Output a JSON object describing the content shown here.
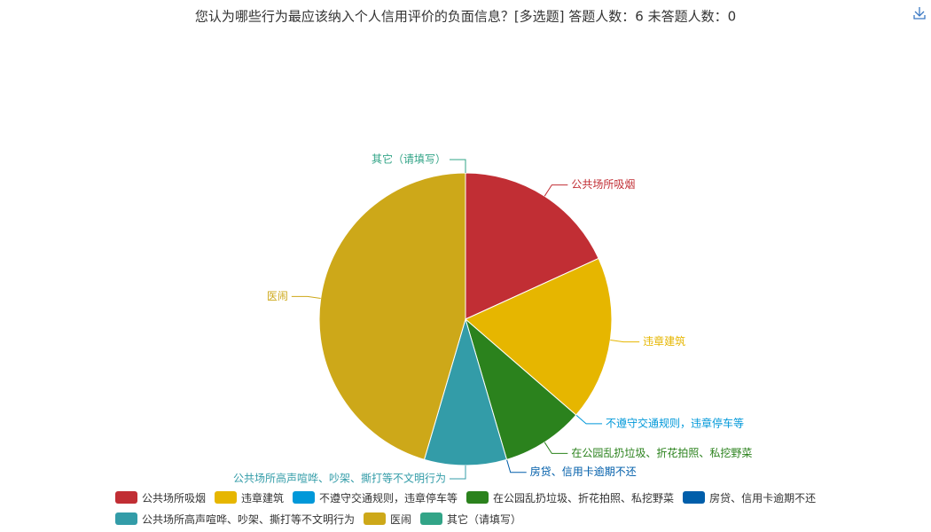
{
  "chart_data": {
    "type": "pie",
    "title": "您认为哪些行为最应该纳入个人信用评价的负面信息？[多选题]  答题人数：6  未答题人数：0",
    "categories": [
      "公共场所吸烟",
      "违章建筑",
      "不遵守交通规则，违章停车等",
      "在公园乱扔垃圾、折花拍照、私挖野菜",
      "房贷、信用卡逾期不还",
      "公共场所高声喧哗、吵架、撕打等不文明行为",
      "医闹",
      "其它（请填写）"
    ],
    "values": [
      2,
      2,
      0,
      1,
      0,
      1,
      5,
      0
    ],
    "colors": [
      "#c12e34",
      "#e6b600",
      "#0098d9",
      "#2b821d",
      "#005eaa",
      "#339ca8",
      "#cda819",
      "#32a487"
    ]
  }
}
